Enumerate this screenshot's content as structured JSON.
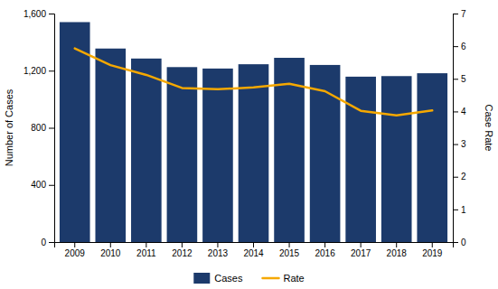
{
  "chart_data": {
    "type": "bar",
    "categories": [
      2009,
      2010,
      2011,
      2012,
      2013,
      2014,
      2015,
      2016,
      2017,
      2018,
      2019
    ],
    "series": [
      {
        "name": "Cases",
        "type": "bar",
        "color": "#1C3A6B",
        "values": [
          1540,
          1355,
          1285,
          1225,
          1215,
          1245,
          1290,
          1240,
          1158,
          1162,
          1182
        ]
      },
      {
        "name": "Rate",
        "type": "line",
        "color": "#F5A800",
        "axis": "y2",
        "values": [
          5.93,
          5.42,
          5.12,
          4.72,
          4.68,
          4.74,
          4.85,
          4.62,
          4.02,
          3.88,
          4.03
        ]
      }
    ],
    "ylabel": "Number of Cases",
    "y2label": "Case Rate",
    "ylim": [
      0,
      1600
    ],
    "yticks": [
      0,
      400,
      800,
      {
        "value": 1200,
        "label": "1,200"
      },
      {
        "value": 1600,
        "label": "1,600"
      }
    ],
    "y2lim": [
      0,
      7
    ],
    "y2ticks": [
      0,
      1,
      2,
      3,
      4,
      5,
      6,
      7
    ],
    "grid": false,
    "legend": "bottom"
  }
}
